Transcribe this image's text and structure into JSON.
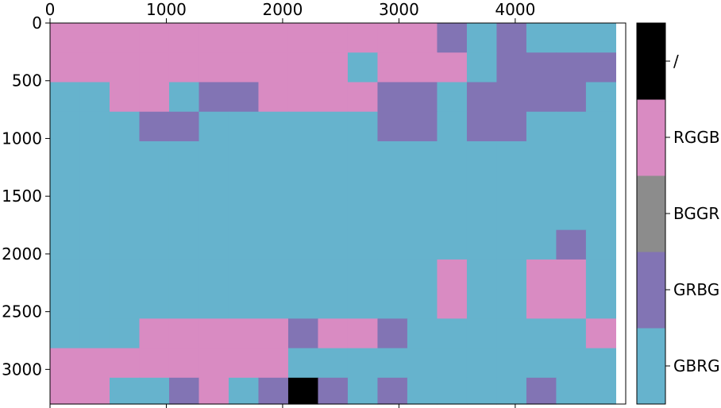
{
  "chart_data": {
    "type": "heatmap",
    "title": "",
    "xlabel": "",
    "ylabel": "",
    "x_range": [
      0,
      4950
    ],
    "y_range": [
      0,
      3300
    ],
    "y_inverted": true,
    "x_ticks": [
      0,
      1000,
      2000,
      3000,
      4000
    ],
    "x_tick_labels": [
      "0",
      "1000",
      "2000",
      "3000",
      "4000"
    ],
    "y_ticks": [
      0,
      500,
      1000,
      1500,
      2000,
      2500,
      3000
    ],
    "y_tick_labels": [
      "0",
      "500",
      "1000",
      "1500",
      "2000",
      "2500",
      "3000"
    ],
    "x_ticks_position": "top",
    "cell_size": [
      256,
      256
    ],
    "categories": [
      {
        "label": "GBRG",
        "color": "#66b3cd",
        "code": "B"
      },
      {
        "label": "GRBG",
        "color": "#8274b4",
        "code": "P"
      },
      {
        "label": "BGGR",
        "color": "#8c8c8c",
        "code": "G"
      },
      {
        "label": "RGGB",
        "color": "#d98bc2",
        "code": "K"
      },
      {
        "label": "/",
        "color": "#000000",
        "code": "X"
      }
    ],
    "colorbar_position": "right",
    "grid": false,
    "rows": [
      "KKKKKKKKKKKKKPBPBBB",
      "KKKKKKKKKKBKKKBPPPP",
      "BBKKBPPKKKKPPBPPPPB",
      "BBBPPBBBBBBPPBPPBBB",
      "BBBBBBBBBBBBBBBBBBB",
      "BBBBBBBBBBBBBBBBBBB",
      "BBBBBBBBBBBBBBBBBBB",
      "BBBBBBBBBBBBBBBBBPB",
      "BBBBBBBBBBBBBKBBKKB",
      "BBBBBBBBBBBBBKBBKKB",
      "BBBKKKKKPKKPBBBBBBK",
      "KKKKKKKKBBBBBBBBBBB",
      "KKBBPKBPXPBPBBBBPBB",
      "KKBBPKBPXPBPBBBBPBB"
    ]
  }
}
